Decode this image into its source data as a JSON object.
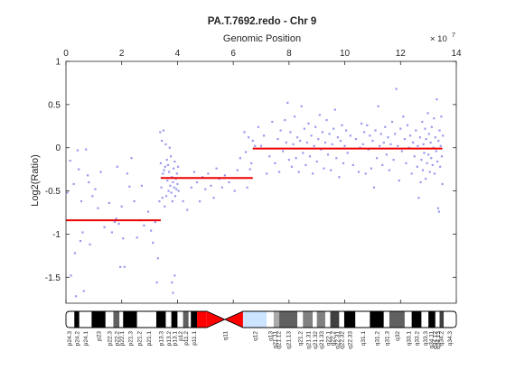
{
  "chart_data": {
    "type": "scatter",
    "title": "PA.T.7692.redo - Chr 9",
    "xlabel": "Genomic Position",
    "ylabel": "Log2(Ratio)",
    "x_exponent_label": "× 10",
    "x_exponent_power": "7",
    "xlim": [
      0,
      14
    ],
    "ylim": [
      -1.8,
      1
    ],
    "x_axis_position": "top",
    "grid": false,
    "xticks": [
      "0",
      "2",
      "4",
      "6",
      "8",
      "10",
      "12",
      "14"
    ],
    "yticks": [
      "1",
      "0.5",
      "0",
      "-0.5",
      "-1",
      "-1.5"
    ],
    "colors": {
      "points": "#9999ee",
      "segments": "#ee0000",
      "centromere": "#ff0000"
    },
    "points": [
      [
        0.05,
        -0.52
      ],
      [
        0.15,
        -0.15
      ],
      [
        0.18,
        -1.48
      ],
      [
        0.28,
        -0.42
      ],
      [
        0.32,
        -1.22
      ],
      [
        0.36,
        -1.72
      ],
      [
        0.42,
        -0.03
      ],
      [
        0.46,
        -0.25
      ],
      [
        0.52,
        -1.08
      ],
      [
        0.55,
        -0.62
      ],
      [
        0.6,
        -0.98
      ],
      [
        0.64,
        -1.66
      ],
      [
        0.72,
        -0.02
      ],
      [
        0.78,
        -0.32
      ],
      [
        0.82,
        -0.4
      ],
      [
        0.86,
        -1.12
      ],
      [
        0.95,
        -0.56
      ],
      [
        1.05,
        -0.48
      ],
      [
        1.15,
        -0.7
      ],
      [
        1.25,
        -0.28
      ],
      [
        1.38,
        -0.92
      ],
      [
        1.55,
        -0.64
      ],
      [
        1.65,
        -0.98
      ],
      [
        1.75,
        -0.86
      ],
      [
        1.8,
        -0.82
      ],
      [
        1.84,
        -0.22
      ],
      [
        1.9,
        -0.88
      ],
      [
        1.95,
        -1.38
      ],
      [
        2.0,
        -0.68
      ],
      [
        2.05,
        -1.05
      ],
      [
        2.1,
        -1.38
      ],
      [
        2.2,
        -0.3
      ],
      [
        2.28,
        -0.45
      ],
      [
        2.35,
        -0.12
      ],
      [
        2.45,
        -0.62
      ],
      [
        2.55,
        -1.04
      ],
      [
        2.65,
        -0.84
      ],
      [
        2.72,
        -0.44
      ],
      [
        2.8,
        -0.9
      ],
      [
        2.95,
        -0.74
      ],
      [
        3.05,
        -0.96
      ],
      [
        3.12,
        -1.1
      ],
      [
        3.2,
        -0.86
      ],
      [
        3.26,
        -1.56
      ],
      [
        3.3,
        -1.28
      ],
      [
        3.35,
        -0.62
      ],
      [
        3.38,
        0.18
      ],
      [
        3.4,
        -0.18
      ],
      [
        3.42,
        -0.46
      ],
      [
        3.44,
        0.08
      ],
      [
        3.46,
        -0.58
      ],
      [
        3.48,
        -0.3
      ],
      [
        3.5,
        0.2
      ],
      [
        3.52,
        -0.26
      ],
      [
        3.54,
        -0.68
      ],
      [
        3.56,
        -0.22
      ],
      [
        3.58,
        0.04
      ],
      [
        3.6,
        -0.56
      ],
      [
        3.62,
        -0.14
      ],
      [
        3.64,
        -0.38
      ],
      [
        3.66,
        -0.2
      ],
      [
        3.68,
        -0.5
      ],
      [
        3.7,
        -0.28
      ],
      [
        3.72,
        0.0
      ],
      [
        3.74,
        -0.44
      ],
      [
        3.76,
        -0.1
      ],
      [
        3.78,
        -0.52
      ],
      [
        3.8,
        -0.34
      ],
      [
        3.82,
        -0.62
      ],
      [
        3.84,
        -0.4
      ],
      [
        3.86,
        -0.24
      ],
      [
        3.88,
        -0.46
      ],
      [
        3.9,
        -0.16
      ],
      [
        3.92,
        -0.56
      ],
      [
        3.94,
        -0.36
      ],
      [
        3.96,
        -0.48
      ],
      [
        3.98,
        -0.3
      ],
      [
        4.0,
        -0.42
      ],
      [
        4.02,
        -0.22
      ],
      [
        4.04,
        -0.5
      ],
      [
        3.8,
        -1.56
      ],
      [
        3.84,
        -1.68
      ],
      [
        3.9,
        -1.48
      ],
      [
        4.2,
        -0.62
      ],
      [
        4.35,
        -0.72
      ],
      [
        4.5,
        -0.46
      ],
      [
        4.6,
        -0.28
      ],
      [
        4.7,
        -0.4
      ],
      [
        4.8,
        -0.62
      ],
      [
        4.9,
        -0.34
      ],
      [
        5.0,
        -0.48
      ],
      [
        5.1,
        -0.3
      ],
      [
        5.2,
        -0.44
      ],
      [
        5.3,
        -0.58
      ],
      [
        5.4,
        -0.24
      ],
      [
        5.5,
        -0.36
      ],
      [
        5.6,
        -0.46
      ],
      [
        5.7,
        -0.32
      ],
      [
        5.85,
        -0.4
      ],
      [
        6.05,
        -0.5
      ],
      [
        6.15,
        -0.26
      ],
      [
        6.25,
        -0.12
      ],
      [
        6.4,
        0.18
      ],
      [
        6.45,
        -0.05
      ],
      [
        6.5,
        -0.46
      ],
      [
        6.55,
        0.12
      ],
      [
        6.6,
        -0.25
      ],
      [
        6.65,
        -0.18
      ],
      [
        6.7,
        0.08
      ],
      [
        6.78,
        0.02
      ],
      [
        6.9,
        0.24
      ],
      [
        7.0,
        0.02
      ],
      [
        7.1,
        0.14
      ],
      [
        7.2,
        -0.3
      ],
      [
        7.3,
        -0.1
      ],
      [
        7.4,
        0.3
      ],
      [
        7.5,
        -0.18
      ],
      [
        7.6,
        0.1
      ],
      [
        7.65,
        -0.28
      ],
      [
        7.7,
        0.2
      ],
      [
        7.78,
        -0.04
      ],
      [
        7.85,
        0.32
      ],
      [
        7.9,
        0.06
      ],
      [
        7.95,
        0.52
      ],
      [
        8.0,
        -0.14
      ],
      [
        8.05,
        0.18
      ],
      [
        8.1,
        -0.22
      ],
      [
        8.15,
        0.04
      ],
      [
        8.2,
        0.36
      ],
      [
        8.25,
        -0.12
      ],
      [
        8.3,
        0.12
      ],
      [
        8.35,
        -0.28
      ],
      [
        8.4,
        0.08
      ],
      [
        8.45,
        0.48
      ],
      [
        8.5,
        -0.06
      ],
      [
        8.55,
        0.22
      ],
      [
        8.6,
        -0.2
      ],
      [
        8.65,
        0.06
      ],
      [
        8.7,
        0.28
      ],
      [
        8.75,
        -0.1
      ],
      [
        8.8,
        0.14
      ],
      [
        8.85,
        -0.3
      ],
      [
        8.9,
        0.02
      ],
      [
        8.95,
        0.24
      ],
      [
        9.0,
        -0.16
      ],
      [
        9.05,
        0.1
      ],
      [
        9.1,
        0.38
      ],
      [
        9.15,
        -0.02
      ],
      [
        9.2,
        0.18
      ],
      [
        9.25,
        -0.24
      ],
      [
        9.3,
        0.06
      ],
      [
        9.35,
        0.32
      ],
      [
        9.4,
        -0.08
      ],
      [
        9.45,
        0.16
      ],
      [
        9.5,
        -0.26
      ],
      [
        9.55,
        0.04
      ],
      [
        9.6,
        0.22
      ],
      [
        9.65,
        0.44
      ],
      [
        9.7,
        -0.12
      ],
      [
        9.75,
        0.12
      ],
      [
        9.8,
        -0.34
      ],
      [
        9.85,
        0.08
      ],
      [
        9.9,
        0.26
      ],
      [
        9.95,
        -0.18
      ],
      [
        10.0,
        0.02
      ],
      [
        10.05,
        0.2
      ],
      [
        10.1,
        -0.06
      ],
      [
        10.2,
        0.14
      ],
      [
        10.3,
        -0.2
      ],
      [
        10.4,
        0.1
      ],
      [
        10.5,
        -0.28
      ],
      [
        10.55,
        0.0
      ],
      [
        10.6,
        0.28
      ],
      [
        10.65,
        0.04
      ],
      [
        10.7,
        0.18
      ],
      [
        10.75,
        -0.3
      ],
      [
        10.8,
        0.26
      ],
      [
        10.85,
        -0.02
      ],
      [
        10.9,
        0.14
      ],
      [
        10.95,
        -0.24
      ],
      [
        11.0,
        0.08
      ],
      [
        11.05,
        -0.46
      ],
      [
        11.1,
        0.2
      ],
      [
        11.15,
        -0.12
      ],
      [
        11.2,
        0.48
      ],
      [
        11.25,
        0.02
      ],
      [
        11.3,
        0.16
      ],
      [
        11.35,
        -0.2
      ],
      [
        11.4,
        0.06
      ],
      [
        11.45,
        0.24
      ],
      [
        11.5,
        -0.08
      ],
      [
        11.55,
        0.12
      ],
      [
        11.6,
        -0.26
      ],
      [
        11.65,
        0.04
      ],
      [
        11.7,
        0.3
      ],
      [
        11.75,
        -0.14
      ],
      [
        11.8,
        0.16
      ],
      [
        11.85,
        0.68
      ],
      [
        11.9,
        0.02
      ],
      [
        11.95,
        -0.38
      ],
      [
        12.0,
        0.22
      ],
      [
        12.05,
        -0.04
      ],
      [
        12.1,
        0.36
      ],
      [
        12.15,
        0.1
      ],
      [
        12.2,
        -0.18
      ],
      [
        12.25,
        0.26
      ],
      [
        12.3,
        0.0
      ],
      [
        12.35,
        0.14
      ],
      [
        12.4,
        -0.3
      ],
      [
        12.45,
        0.06
      ],
      [
        12.5,
        -0.1
      ],
      [
        12.55,
        0.2
      ],
      [
        12.6,
        -0.22
      ],
      [
        12.62,
        0.02
      ],
      [
        12.65,
        -0.58
      ],
      [
        12.7,
        0.12
      ],
      [
        12.72,
        -0.4
      ],
      [
        12.75,
        -0.14
      ],
      [
        12.78,
        0.3
      ],
      [
        12.8,
        -0.26
      ],
      [
        12.82,
        0.04
      ],
      [
        12.85,
        -0.06
      ],
      [
        12.88,
        0.22
      ],
      [
        12.9,
        -0.36
      ],
      [
        12.92,
        0.1
      ],
      [
        12.95,
        -0.18
      ],
      [
        12.98,
        0.4
      ],
      [
        13.0,
        -0.08
      ],
      [
        13.02,
        0.16
      ],
      [
        13.05,
        -0.28
      ],
      [
        13.08,
        0.06
      ],
      [
        13.1,
        -0.12
      ],
      [
        13.12,
        0.24
      ],
      [
        13.15,
        -0.2
      ],
      [
        13.18,
        0.0
      ],
      [
        13.2,
        0.34
      ],
      [
        13.22,
        -0.3
      ],
      [
        13.25,
        0.12
      ],
      [
        13.28,
        -0.04
      ],
      [
        13.3,
        0.56
      ],
      [
        13.32,
        -0.16
      ],
      [
        13.35,
        -0.7
      ],
      [
        13.36,
        0.08
      ],
      [
        13.38,
        -0.74
      ],
      [
        13.4,
        0.2
      ],
      [
        13.42,
        -0.22
      ],
      [
        13.44,
        0.02
      ],
      [
        13.46,
        0.36
      ],
      [
        13.48,
        -0.1
      ],
      [
        13.5,
        -0.42
      ],
      [
        13.52,
        0.14
      ]
    ],
    "segments": [
      {
        "x": [
          0,
          3.4
        ],
        "y": -0.84
      },
      {
        "x": [
          3.4,
          6.7
        ],
        "y": -0.35
      },
      {
        "x": [
          6.7,
          13.5
        ],
        "y": -0.01
      }
    ],
    "ideogram": {
      "x_end": 14,
      "centromere": [
        5.05,
        6.35
      ],
      "bands": [
        {
          "s": 0.0,
          "e": 0.3,
          "c": "#ffffff"
        },
        {
          "s": 0.3,
          "e": 0.48,
          "c": "#000000"
        },
        {
          "s": 0.48,
          "e": 0.92,
          "c": "#ffffff"
        },
        {
          "s": 0.92,
          "e": 1.42,
          "c": "#000000"
        },
        {
          "s": 1.42,
          "e": 1.7,
          "c": "#ffffff"
        },
        {
          "s": 1.7,
          "e": 1.92,
          "c": "#606060"
        },
        {
          "s": 1.92,
          "e": 2.05,
          "c": "#ffffff"
        },
        {
          "s": 2.05,
          "e": 2.55,
          "c": "#000000"
        },
        {
          "s": 2.55,
          "e": 2.7,
          "c": "#ffffff"
        },
        {
          "s": 2.7,
          "e": 3.24,
          "c": "#ffffff"
        },
        {
          "s": 3.24,
          "e": 3.58,
          "c": "#000000"
        },
        {
          "s": 3.58,
          "e": 3.78,
          "c": "#ffffff"
        },
        {
          "s": 3.78,
          "e": 4.0,
          "c": "#000000"
        },
        {
          "s": 4.0,
          "e": 4.2,
          "c": "#ffffff"
        },
        {
          "s": 4.2,
          "e": 4.4,
          "c": "#606060"
        },
        {
          "s": 4.4,
          "e": 4.48,
          "c": "#ffffff"
        },
        {
          "s": 4.48,
          "e": 4.7,
          "c": "#000000"
        },
        {
          "s": 4.7,
          "e": 5.05,
          "c": "#ff0000"
        },
        {
          "s": 5.05,
          "e": 6.35,
          "c": "#ff0000"
        },
        {
          "s": 6.35,
          "e": 7.2,
          "c": "#cce4ff"
        },
        {
          "s": 7.2,
          "e": 7.45,
          "c": "#ffffff"
        },
        {
          "s": 7.45,
          "e": 7.65,
          "c": "#aaaaaa"
        },
        {
          "s": 7.65,
          "e": 8.3,
          "c": "#606060"
        },
        {
          "s": 8.3,
          "e": 8.5,
          "c": "#ffffff"
        },
        {
          "s": 8.5,
          "e": 8.85,
          "c": "#808080"
        },
        {
          "s": 8.85,
          "e": 9.0,
          "c": "#ffffff"
        },
        {
          "s": 9.0,
          "e": 9.3,
          "c": "#808080"
        },
        {
          "s": 9.3,
          "e": 9.48,
          "c": "#ffffff"
        },
        {
          "s": 9.48,
          "e": 9.8,
          "c": "#404040"
        },
        {
          "s": 9.8,
          "e": 9.98,
          "c": "#ffffff"
        },
        {
          "s": 9.98,
          "e": 10.38,
          "c": "#000000"
        },
        {
          "s": 10.38,
          "e": 10.9,
          "c": "#ffffff"
        },
        {
          "s": 10.9,
          "e": 11.4,
          "c": "#000000"
        },
        {
          "s": 11.4,
          "e": 11.6,
          "c": "#ffffff"
        },
        {
          "s": 11.6,
          "e": 12.15,
          "c": "#606060"
        },
        {
          "s": 12.15,
          "e": 12.4,
          "c": "#ffffff"
        },
        {
          "s": 12.4,
          "e": 12.75,
          "c": "#000000"
        },
        {
          "s": 12.75,
          "e": 13.0,
          "c": "#ffffff"
        },
        {
          "s": 13.0,
          "e": 13.25,
          "c": "#000000"
        },
        {
          "s": 13.25,
          "e": 13.4,
          "c": "#ffffff"
        },
        {
          "s": 13.4,
          "e": 13.55,
          "c": "#404040"
        },
        {
          "s": 13.55,
          "e": 14.0,
          "c": "#ffffff"
        }
      ],
      "labels": [
        {
          "t": "p24.3",
          "x": 0.12
        },
        {
          "t": "p24.2",
          "x": 0.39
        },
        {
          "t": "p24.1",
          "x": 0.7
        },
        {
          "t": "p23",
          "x": 1.17
        },
        {
          "t": "p22.3",
          "x": 1.56
        },
        {
          "t": "p22.2",
          "x": 1.81
        },
        {
          "t": "p22.1",
          "x": 1.99
        },
        {
          "t": "p21.3",
          "x": 2.3
        },
        {
          "t": "p21.2",
          "x": 2.62
        },
        {
          "t": "p21.1",
          "x": 2.97
        },
        {
          "t": "p13.3",
          "x": 3.41
        },
        {
          "t": "p13.2",
          "x": 3.68
        },
        {
          "t": "p13.1",
          "x": 3.89
        },
        {
          "t": "p12",
          "x": 4.1
        },
        {
          "t": "p11.2",
          "x": 4.3
        },
        {
          "t": "p11.1",
          "x": 4.59
        },
        {
          "t": "q11",
          "x": 5.7
        },
        {
          "t": "q12",
          "x": 6.78
        },
        {
          "t": "q13",
          "x": 7.32
        },
        {
          "t": "q21.11",
          "x": 7.48
        },
        {
          "t": "q21.12",
          "x": 7.62
        },
        {
          "t": "q21.13",
          "x": 7.98
        },
        {
          "t": "q21.2",
          "x": 8.4
        },
        {
          "t": "q21.31",
          "x": 8.68
        },
        {
          "t": "q21.32",
          "x": 8.93
        },
        {
          "t": "q21.33",
          "x": 9.15
        },
        {
          "t": "q22.1",
          "x": 9.39
        },
        {
          "t": "q22.2",
          "x": 9.56
        },
        {
          "t": "q22.31",
          "x": 9.72
        },
        {
          "t": "q22.32",
          "x": 9.89
        },
        {
          "t": "q22.33",
          "x": 10.18
        },
        {
          "t": "q31.1",
          "x": 10.64
        },
        {
          "t": "q31.2",
          "x": 11.15
        },
        {
          "t": "q31.3",
          "x": 11.5
        },
        {
          "t": "q32",
          "x": 11.88
        },
        {
          "t": "q33.1",
          "x": 12.28
        },
        {
          "t": "q33.2",
          "x": 12.58
        },
        {
          "t": "q33.3",
          "x": 12.88
        },
        {
          "t": "q34.11",
          "x": 13.1
        },
        {
          "t": "q34.12",
          "x": 13.22
        },
        {
          "t": "q34.13",
          "x": 13.33
        },
        {
          "t": "q34.2",
          "x": 13.45
        },
        {
          "t": "q34.3",
          "x": 13.75
        }
      ]
    }
  }
}
